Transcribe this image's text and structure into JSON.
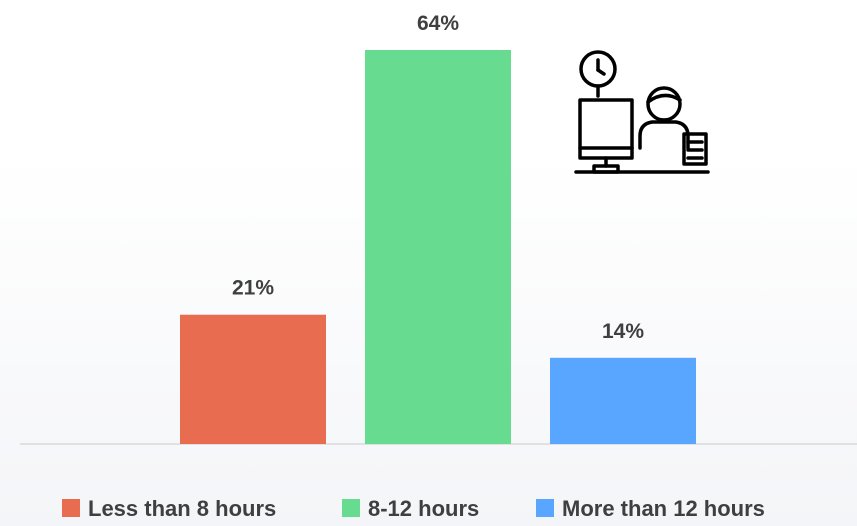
{
  "chart_data": {
    "type": "bar",
    "categories": [
      "Less than 8 hours",
      "8-12 hours",
      "More than 12 hours"
    ],
    "values": [
      21,
      64,
      14
    ],
    "value_labels": [
      "21%",
      "64%",
      "14%"
    ],
    "unit": "%",
    "colors": [
      "#e86c4f",
      "#67dc91",
      "#58a6ff"
    ],
    "ylim": [
      0,
      64
    ],
    "grid": false,
    "legend": {
      "position": "bottom",
      "entries": [
        "Less than 8 hours",
        "8-12 hours",
        "More than 12 hours"
      ]
    },
    "title": "",
    "xlabel": "",
    "ylabel": ""
  },
  "decoration": {
    "icon": "office-worker-clock-icon"
  }
}
